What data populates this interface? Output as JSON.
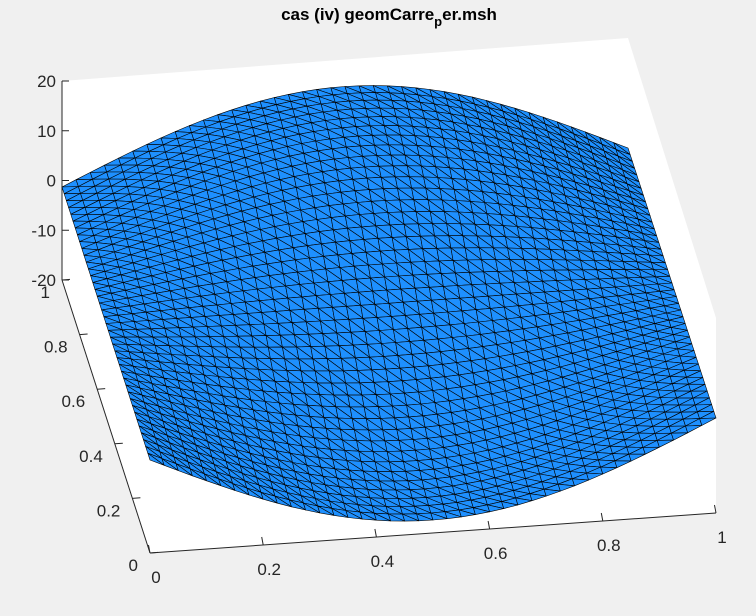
{
  "figure": {
    "background": "#f0f0f0",
    "axes_background": "#ffffff"
  },
  "chart_data": {
    "type": "surface",
    "title": {
      "prefix": "cas (iv) geomCarre",
      "subscript": "p",
      "suffix": "er.msh"
    },
    "xlabel": "",
    "ylabel": "",
    "zlabel": "",
    "xlim": [
      0,
      1
    ],
    "ylim": [
      0,
      1
    ],
    "zlim": [
      -20,
      20
    ],
    "x_ticks": [
      "0",
      "0.2",
      "0.4",
      "0.6",
      "0.8",
      "1"
    ],
    "y_ticks": [
      "0",
      "0.2",
      "0.4",
      "0.6",
      "0.8",
      "1"
    ],
    "z_ticks": [
      "20",
      "10",
      "0",
      "-10",
      "-20"
    ],
    "surface": {
      "mesh": "triangular",
      "face_color": "#1e90ff",
      "edge_color": "#000000",
      "corner_values": {
        "x0_y0": 0,
        "x1_y0": 0,
        "x0_y1": 0,
        "x1_y1": 0
      },
      "edge_midpoint_values": {
        "y0": 15,
        "y1": -15
      },
      "center_value": 0
    },
    "grid": false,
    "view": "3d"
  }
}
